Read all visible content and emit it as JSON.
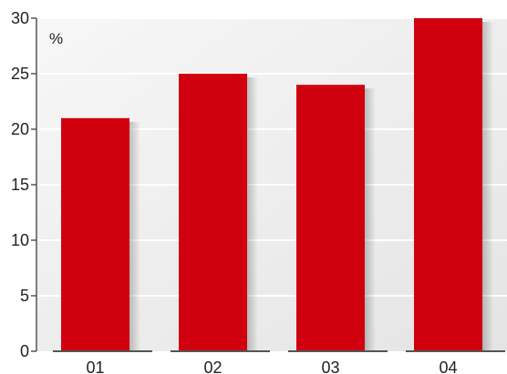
{
  "chart_data": {
    "type": "bar",
    "categories": [
      "01",
      "02",
      "03",
      "04"
    ],
    "values": [
      21,
      25,
      24,
      30
    ],
    "ylabel": "%",
    "ylim": [
      0,
      30
    ],
    "yticks": [
      0,
      5,
      10,
      15,
      20,
      25,
      30
    ],
    "grid": true,
    "colors": {
      "bar": "#d0000f",
      "background_light": "#f7f7f7",
      "background_dark": "#e4e4e4",
      "gridline": "#ffffff",
      "axis": "#555555",
      "text": "#222222"
    }
  }
}
